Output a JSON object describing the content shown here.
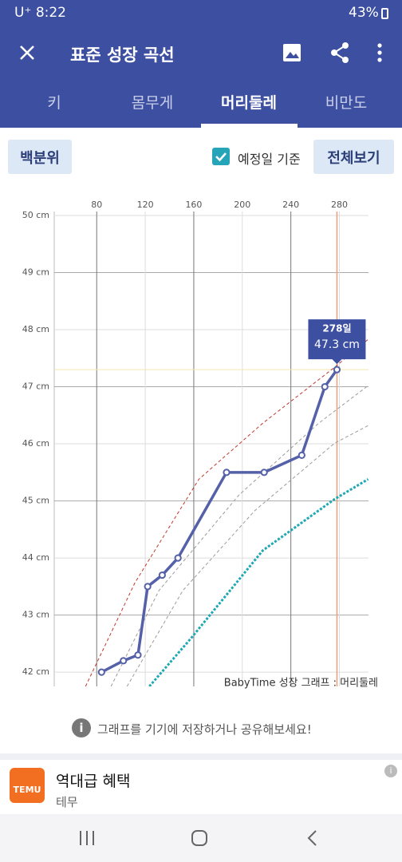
{
  "status_bar": {
    "carrier_time": "U⁺ 8:22",
    "battery": "43%"
  },
  "app_bar": {
    "title": "표준 성장 곡선"
  },
  "tabs": [
    "키",
    "몸무게",
    "머리둘레",
    "비만도"
  ],
  "controls": {
    "percentile_button": "백분위",
    "due_date_label": "예정일 기준",
    "full_view_button": "전체보기"
  },
  "chart_data": {
    "type": "line",
    "caption": "BabyTime 성장 그래프 : 머리둘레",
    "xlim": [
      45,
      304
    ],
    "xticks": [
      80,
      120,
      160,
      200,
      240,
      280
    ],
    "ylim": [
      41.75,
      50
    ],
    "yticks": [
      {
        "value": 42,
        "label": "42 cm"
      },
      {
        "value": 43,
        "label": "43 cm"
      },
      {
        "value": 44,
        "label": "44 cm"
      },
      {
        "value": 45,
        "label": "45 cm"
      },
      {
        "value": 46,
        "label": "46 cm"
      },
      {
        "value": 47,
        "label": "47 cm"
      },
      {
        "value": 48,
        "label": "48 cm"
      },
      {
        "value": 49,
        "label": "49 cm"
      },
      {
        "value": 50,
        "label": "50 cm"
      }
    ],
    "grid": true,
    "series": [
      {
        "color": "#c0392b",
        "style": "dashed",
        "x": [
          70.8,
          111.6,
          164.2,
          216.8,
          276,
          303.7
        ],
        "values": [
          41.75,
          43.57,
          45.38,
          46.36,
          47.34,
          47.83
        ]
      },
      {
        "color": "#9a9a9a",
        "style": "dashed",
        "x": [
          91.8,
          131.3,
          197.1,
          262.9,
          303.7
        ],
        "values": [
          41.75,
          43.43,
          45.1,
          46.36,
          47.02
        ]
      },
      {
        "color": "#9a9a9a",
        "style": "dashed",
        "x": [
          105,
          151,
          210.3,
          276,
          303.7
        ],
        "values": [
          41.75,
          43.43,
          44.83,
          46.01,
          46.32
        ]
      },
      {
        "color": "#1ea8b4",
        "style": "dotted",
        "x": [
          123.4,
          157.6,
          216.8,
          276,
          303.7
        ],
        "values": [
          41.75,
          42.59,
          44.13,
          45.03,
          45.38
        ]
      },
      {
        "color": "#5461a8",
        "style": "solid",
        "markers": true,
        "x": [
          84,
          102,
          114,
          122,
          134,
          147,
          187,
          218,
          249,
          268,
          278
        ],
        "values": [
          42.0,
          42.2,
          42.3,
          43.5,
          43.7,
          44.0,
          45.5,
          45.5,
          45.8,
          47.0,
          47.3
        ]
      }
    ],
    "tooltip": {
      "x": {
        "value": 278,
        "label": "278일"
      },
      "y": {
        "value": 47.3,
        "label": "47.3 cm"
      }
    }
  },
  "hint": "그래프를 기기에 저장하거나 공유해보세요!",
  "ad": {
    "logo": "TEMU",
    "title": "역대급 혜택",
    "advertiser": "테무"
  }
}
